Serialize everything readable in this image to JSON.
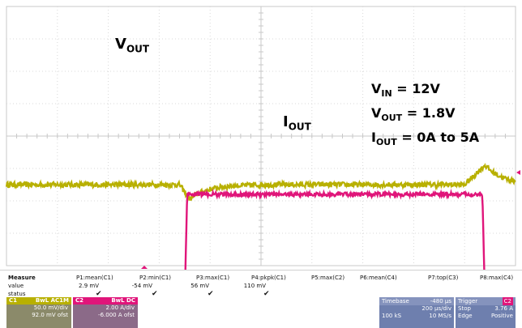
{
  "annotations": {
    "vout_label": "V",
    "vout_sub": "OUT",
    "iout_label": "I",
    "iout_sub": "OUT",
    "cond_vin": "V",
    "cond_vin_sub": "IN",
    "cond_vin_val": " = 12V",
    "cond_vout": "V",
    "cond_vout_sub": "OUT",
    "cond_vout_val": " = 1.8V",
    "cond_iout": "I",
    "cond_iout_sub": "OUT",
    "cond_iout_val": " = 0A to 5A"
  },
  "chart_data": {
    "type": "line",
    "title": "",
    "time_div": "200 µs/div",
    "grid": true,
    "x_divisions": 10,
    "y_divisions": 8,
    "series": [
      {
        "channel": "C1",
        "color": "#b8b000",
        "scale": "50.0 mV/div",
        "x": [
          0.0,
          3.4,
          3.6,
          5.0,
          9.0,
          9.4,
          10.0
        ],
        "y": [
          -1.5,
          -1.5,
          -1.95,
          -1.55,
          -1.5,
          -0.9,
          -1.35
        ]
      },
      {
        "channel": "C2",
        "color": "#e0157a",
        "scale": "2.00 A/div",
        "x": [
          0.0,
          3.5,
          3.55,
          9.35,
          9.4,
          10.0
        ],
        "y": [
          -5.1,
          -5.1,
          -1.8,
          -1.8,
          -5.0,
          -5.1
        ]
      }
    ],
    "markers": {
      "C1": "C1",
      "C2": "C2"
    }
  },
  "measure": {
    "title": "Measure",
    "row_value": "value",
    "row_status": "status",
    "params": [
      {
        "name": "P1:mean(C1)",
        "value": "2.9 mV",
        "status": true
      },
      {
        "name": "P2:min(C1)",
        "value": "-54 mV",
        "status": true
      },
      {
        "name": "P3:max(C1)",
        "value": "56 mV",
        "status": true
      },
      {
        "name": "P4:pkpk(C1)",
        "value": "110 mV",
        "status": true
      },
      {
        "name": "P5:max(C2)",
        "value": "",
        "status": false
      },
      {
        "name": "P6:mean(C4)",
        "value": "",
        "status": false
      },
      {
        "name": "P7:top(C3)",
        "value": "",
        "status": false
      },
      {
        "name": "P8:max(C4)",
        "value": "",
        "status": false
      }
    ]
  },
  "channels": {
    "c1": {
      "name": "C1",
      "flags": "BwL AC1M",
      "scale": "50.0 mV/div",
      "offset": "92.0 mV ofst",
      "color": "#b8b000"
    },
    "c2": {
      "name": "C2",
      "flags": "BwL DC",
      "scale": "2.00 A/div",
      "offset": "-6.000 A ofst",
      "color": "#e0157a"
    }
  },
  "timebase": {
    "label": "Timebase",
    "delay": "-480 µs",
    "scale": "200 µs/div",
    "samples": "100 kS",
    "rate": "10 MS/s"
  },
  "trigger": {
    "label": "Trigger",
    "channel": "C2",
    "mode": "Stop",
    "level": "3.76 A",
    "type": "Edge",
    "slope": "Positive"
  }
}
